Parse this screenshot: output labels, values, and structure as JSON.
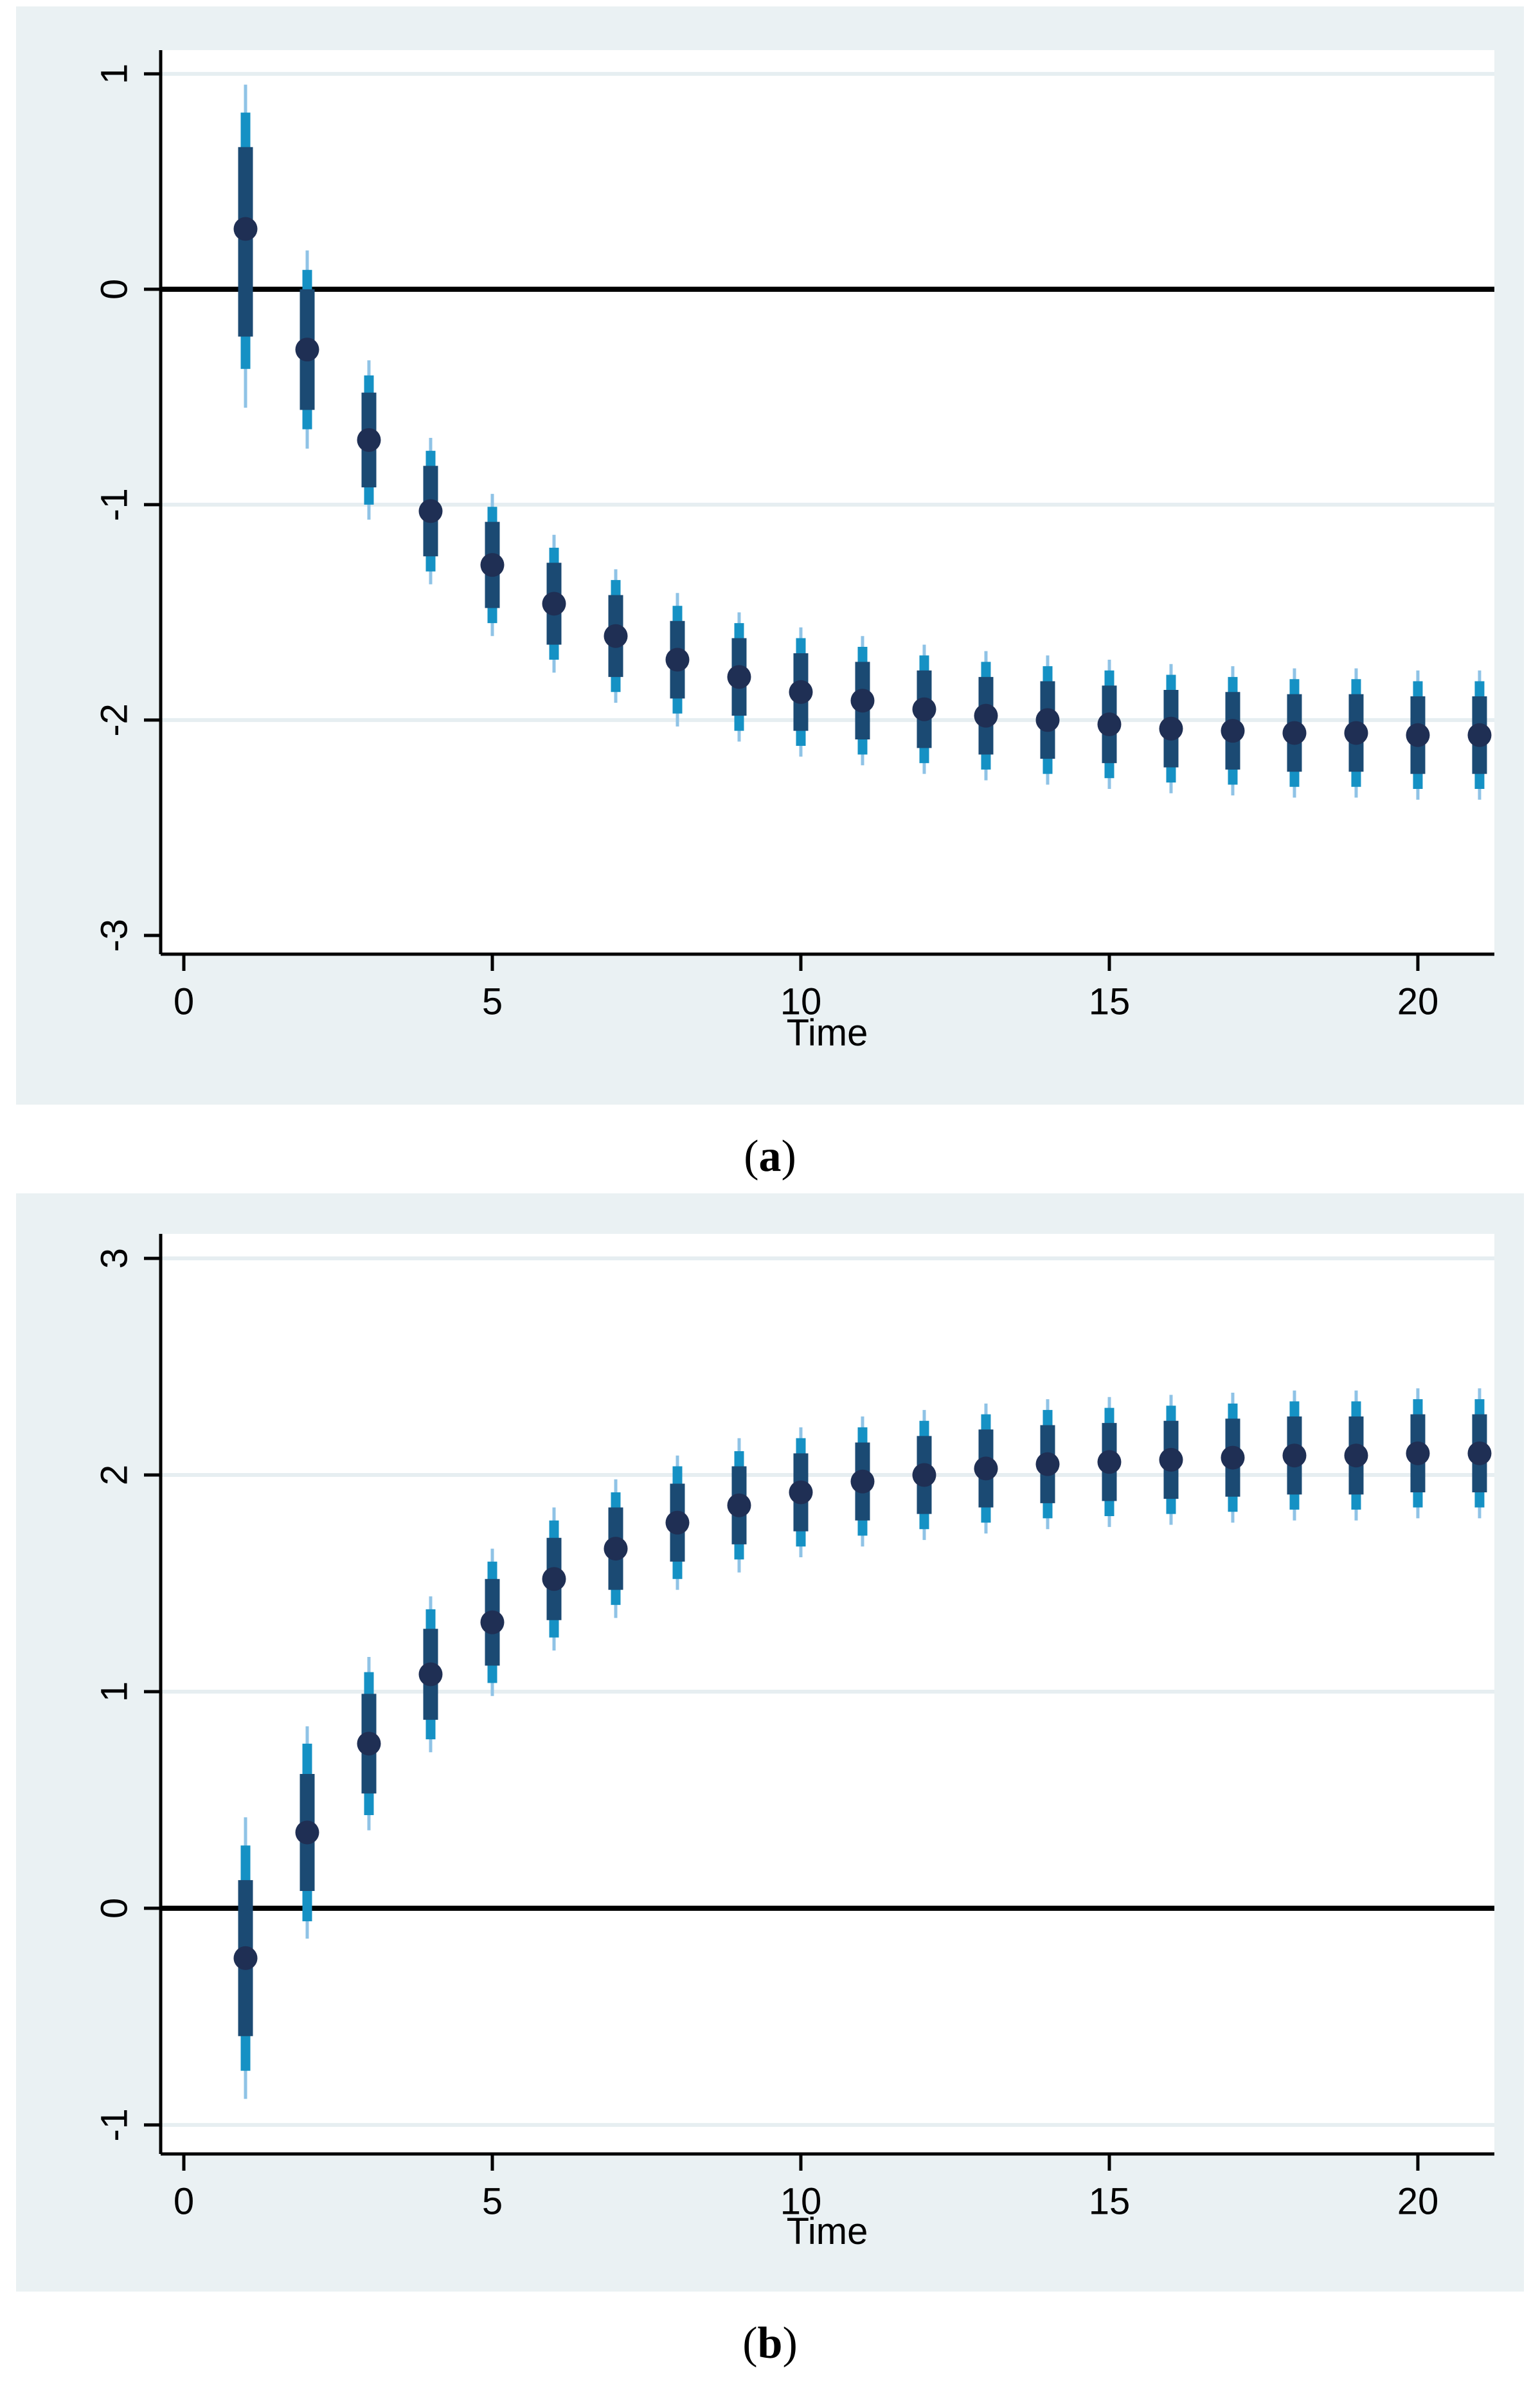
{
  "figure": {
    "captions": [
      {
        "open": "(",
        "letter": "a",
        "close": ")"
      },
      {
        "open": "(",
        "letter": "b",
        "close": ")"
      }
    ]
  },
  "style": {
    "page_bg": "#FFFFFF",
    "panel_bg": "#EAF1F3",
    "plot_bg": "#FFFFFF",
    "grid_color": "#E6EEF1",
    "axis_color": "#000000",
    "zero_line_color": "#000000",
    "text_color": "#000000",
    "dot_color": "#1F2F54",
    "inner_band_color": "#1B4A73",
    "mid_band_color": "#1591C4",
    "outer_band_color": "#8FC3E6"
  },
  "chart_data": [
    {
      "id": "a",
      "type": "scatter",
      "subtype": "point-estimates-with-nested-credible-bands",
      "title": "",
      "xlabel": "Time",
      "ylabel": "",
      "legend": "none",
      "grid": "horizontal",
      "x_ticks": [
        0,
        5,
        10,
        15,
        20
      ],
      "y_ticks": [
        1,
        0,
        -1,
        -2,
        -3
      ],
      "y_tick_labels": [
        "1",
        "0",
        "-1",
        "-2",
        "-3"
      ],
      "x_tick_labels": [
        "0",
        "5",
        "10",
        "15",
        "20"
      ],
      "grid_y": [
        1,
        -1,
        -2
      ],
      "zero_line": 0,
      "xlim": [
        -0.375,
        21.24
      ],
      "ylim": [
        -3.087,
        1.11
      ],
      "x": [
        1,
        2,
        3,
        4,
        5,
        6,
        7,
        8,
        9,
        10,
        11,
        12,
        13,
        14,
        15,
        16,
        17,
        18,
        19,
        20,
        21
      ],
      "points": [
        0.28,
        -0.28,
        -0.7,
        -1.03,
        -1.28,
        -1.46,
        -1.61,
        -1.72,
        -1.8,
        -1.87,
        -1.91,
        -1.95,
        -1.98,
        -2.0,
        -2.02,
        -2.04,
        -2.05,
        -2.06,
        -2.06,
        -2.07,
        -2.07
      ],
      "band_inner": [
        [
          -0.22,
          0.66
        ],
        [
          -0.56,
          0.0
        ],
        [
          -0.92,
          -0.48
        ],
        [
          -1.24,
          -0.82
        ],
        [
          -1.48,
          -1.08
        ],
        [
          -1.65,
          -1.27
        ],
        [
          -1.8,
          -1.42
        ],
        [
          -1.9,
          -1.54
        ],
        [
          -1.98,
          -1.62
        ],
        [
          -2.05,
          -1.69
        ],
        [
          -2.09,
          -1.73
        ],
        [
          -2.13,
          -1.77
        ],
        [
          -2.16,
          -1.8
        ],
        [
          -2.18,
          -1.82
        ],
        [
          -2.2,
          -1.84
        ],
        [
          -2.22,
          -1.86
        ],
        [
          -2.23,
          -1.87
        ],
        [
          -2.24,
          -1.88
        ],
        [
          -2.24,
          -1.88
        ],
        [
          -2.25,
          -1.89
        ],
        [
          -2.25,
          -1.89
        ]
      ],
      "band_mid": [
        [
          -0.37,
          0.82
        ],
        [
          -0.65,
          0.09
        ],
        [
          -1.0,
          -0.4
        ],
        [
          -1.31,
          -0.75
        ],
        [
          -1.55,
          -1.01
        ],
        [
          -1.72,
          -1.2
        ],
        [
          -1.87,
          -1.35
        ],
        [
          -1.97,
          -1.47
        ],
        [
          -2.05,
          -1.55
        ],
        [
          -2.12,
          -1.62
        ],
        [
          -2.16,
          -1.66
        ],
        [
          -2.2,
          -1.7
        ],
        [
          -2.23,
          -1.73
        ],
        [
          -2.25,
          -1.75
        ],
        [
          -2.27,
          -1.77
        ],
        [
          -2.29,
          -1.79
        ],
        [
          -2.3,
          -1.8
        ],
        [
          -2.31,
          -1.81
        ],
        [
          -2.31,
          -1.81
        ],
        [
          -2.32,
          -1.82
        ],
        [
          -2.32,
          -1.82
        ]
      ],
      "band_outer": [
        [
          -0.55,
          0.95
        ],
        [
          -0.74,
          0.18
        ],
        [
          -1.07,
          -0.33
        ],
        [
          -1.37,
          -0.69
        ],
        [
          -1.61,
          -0.95
        ],
        [
          -1.78,
          -1.14
        ],
        [
          -1.92,
          -1.3
        ],
        [
          -2.03,
          -1.41
        ],
        [
          -2.1,
          -1.5
        ],
        [
          -2.17,
          -1.57
        ],
        [
          -2.21,
          -1.61
        ],
        [
          -2.25,
          -1.65
        ],
        [
          -2.28,
          -1.68
        ],
        [
          -2.3,
          -1.7
        ],
        [
          -2.32,
          -1.72
        ],
        [
          -2.34,
          -1.74
        ],
        [
          -2.35,
          -1.75
        ],
        [
          -2.36,
          -1.76
        ],
        [
          -2.36,
          -1.76
        ],
        [
          -2.37,
          -1.77
        ],
        [
          -2.37,
          -1.77
        ]
      ]
    },
    {
      "id": "b",
      "type": "scatter",
      "subtype": "point-estimates-with-nested-credible-bands",
      "title": "",
      "xlabel": "Time",
      "ylabel": "",
      "legend": "none",
      "grid": "horizontal",
      "x_ticks": [
        0,
        5,
        10,
        15,
        20
      ],
      "y_ticks": [
        3,
        2,
        1,
        0,
        -1
      ],
      "y_tick_labels": [
        "3",
        "2",
        "1",
        "0",
        "-1"
      ],
      "x_tick_labels": [
        "0",
        "5",
        "10",
        "15",
        "20"
      ],
      "grid_y": [
        3,
        2,
        1,
        -1
      ],
      "zero_line": 0,
      "xlim": [
        -0.375,
        21.24
      ],
      "ylim": [
        -1.134,
        3.113
      ],
      "x": [
        1,
        2,
        3,
        4,
        5,
        6,
        7,
        8,
        9,
        10,
        11,
        12,
        13,
        14,
        15,
        16,
        17,
        18,
        19,
        20,
        21
      ],
      "points": [
        -0.23,
        0.35,
        0.76,
        1.08,
        1.32,
        1.52,
        1.66,
        1.78,
        1.86,
        1.92,
        1.97,
        2.0,
        2.03,
        2.05,
        2.06,
        2.07,
        2.08,
        2.09,
        2.09,
        2.1,
        2.1
      ],
      "band_inner": [
        [
          -0.59,
          0.13
        ],
        [
          0.08,
          0.62
        ],
        [
          0.53,
          0.99
        ],
        [
          0.87,
          1.29
        ],
        [
          1.12,
          1.52
        ],
        [
          1.33,
          1.71
        ],
        [
          1.47,
          1.85
        ],
        [
          1.6,
          1.96
        ],
        [
          1.68,
          2.04
        ],
        [
          1.74,
          2.1
        ],
        [
          1.79,
          2.15
        ],
        [
          1.82,
          2.18
        ],
        [
          1.85,
          2.21
        ],
        [
          1.87,
          2.23
        ],
        [
          1.88,
          2.24
        ],
        [
          1.89,
          2.25
        ],
        [
          1.9,
          2.26
        ],
        [
          1.91,
          2.27
        ],
        [
          1.91,
          2.27
        ],
        [
          1.92,
          2.28
        ],
        [
          1.92,
          2.28
        ]
      ],
      "band_mid": [
        [
          -0.75,
          0.29
        ],
        [
          -0.06,
          0.76
        ],
        [
          0.43,
          1.09
        ],
        [
          0.78,
          1.38
        ],
        [
          1.04,
          1.6
        ],
        [
          1.25,
          1.79
        ],
        [
          1.4,
          1.92
        ],
        [
          1.52,
          2.04
        ],
        [
          1.61,
          2.11
        ],
        [
          1.67,
          2.17
        ],
        [
          1.72,
          2.22
        ],
        [
          1.75,
          2.25
        ],
        [
          1.78,
          2.28
        ],
        [
          1.8,
          2.3
        ],
        [
          1.81,
          2.31
        ],
        [
          1.82,
          2.32
        ],
        [
          1.83,
          2.33
        ],
        [
          1.84,
          2.34
        ],
        [
          1.84,
          2.34
        ],
        [
          1.85,
          2.35
        ],
        [
          1.85,
          2.35
        ]
      ],
      "band_outer": [
        [
          -0.88,
          0.42
        ],
        [
          -0.14,
          0.84
        ],
        [
          0.36,
          1.16
        ],
        [
          0.72,
          1.44
        ],
        [
          0.98,
          1.66
        ],
        [
          1.19,
          1.85
        ],
        [
          1.34,
          1.98
        ],
        [
          1.47,
          2.09
        ],
        [
          1.55,
          2.17
        ],
        [
          1.62,
          2.22
        ],
        [
          1.67,
          2.27
        ],
        [
          1.7,
          2.3
        ],
        [
          1.73,
          2.33
        ],
        [
          1.75,
          2.35
        ],
        [
          1.76,
          2.36
        ],
        [
          1.77,
          2.37
        ],
        [
          1.78,
          2.38
        ],
        [
          1.79,
          2.39
        ],
        [
          1.79,
          2.39
        ],
        [
          1.8,
          2.4
        ],
        [
          1.8,
          2.4
        ]
      ]
    }
  ]
}
